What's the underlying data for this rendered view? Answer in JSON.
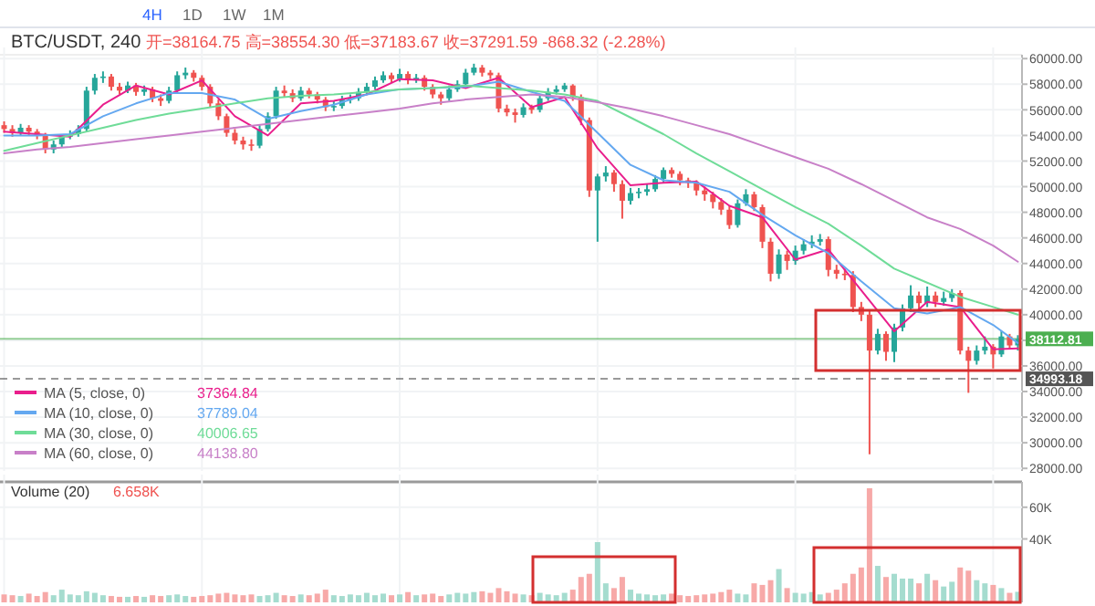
{
  "chart_data": [
    {
      "type": "candlestick",
      "title": "BTC/USDT, 240",
      "subtitle": "开=38164.75 高=38554.30 低=37183.67 收=37291.59 -868.32 (-2.28%)",
      "categories": [
        null,
        null,
        null,
        null,
        null,
        null,
        null,
        null,
        null,
        null,
        null,
        null,
        null,
        null,
        null,
        null,
        null,
        null,
        null,
        null,
        null,
        null,
        null,
        null,
        null,
        null,
        null,
        null,
        null,
        null,
        null,
        null,
        null,
        null,
        null,
        null,
        null,
        null,
        null,
        null,
        null,
        null,
        null,
        null,
        null,
        null,
        null,
        null,
        null,
        null,
        null,
        null,
        null,
        null,
        null,
        null,
        null,
        null,
        null,
        null,
        null,
        null,
        null,
        null,
        null,
        null,
        null,
        null,
        null,
        null,
        null,
        null,
        null,
        null,
        null,
        null,
        null,
        null,
        null,
        null,
        null,
        null,
        null,
        null,
        null,
        null,
        null,
        null,
        null,
        null,
        null,
        null,
        null,
        null,
        null,
        null,
        null,
        null,
        null,
        null,
        null,
        null,
        null,
        null,
        null,
        null,
        null,
        null,
        null,
        null,
        null,
        null,
        null,
        null,
        null,
        null,
        null,
        null,
        null,
        null,
        null,
        null,
        null,
        null
      ],
      "colors": [
        "#ef5350",
        "#ef5350",
        "#26a69a",
        "#ef5350",
        "#ef5350",
        "#ef5350",
        "#26a69a",
        "#26a69a",
        "#26a69a",
        "#26a69a",
        "#26a69a",
        "#26a69a",
        "#26a69a",
        "#ef5350",
        "#ef5350",
        "#26a69a",
        "#ef5350",
        "#26a69a",
        "#ef5350",
        "#ef5350",
        "#26a69a",
        "#26a69a",
        "#26a69a",
        "#ef5350",
        "#ef5350",
        "#ef5350",
        "#ef5350",
        "#ef5350",
        "#ef5350",
        "#ef5350",
        "#ef5350",
        "#26a69a",
        "#26a69a",
        "#26a69a",
        "#ef5350",
        "#ef5350",
        "#26a69a",
        "#ef5350",
        "#ef5350",
        "#ef5350",
        "#26a69a",
        "#26a69a",
        "#26a69a",
        "#26a69a",
        "#26a69a",
        "#26a69a",
        "#26a69a",
        "#ef5350",
        "#26a69a",
        "#ef5350",
        "#26a69a",
        "#ef5350",
        "#ef5350",
        "#ef5350",
        "#26a69a",
        "#26a69a",
        "#26a69a",
        "#26a69a",
        "#ef5350",
        "#ef5350",
        "#ef5350",
        "#ef5350",
        "#ef5350",
        "#26a69a",
        "#ef5350",
        "#26a69a",
        "#26a69a",
        "#26a69a",
        "#26a69a",
        "#ef5350",
        "#ef5350",
        "#ef5350",
        "#26a69a",
        "#26a69a",
        "#ef5350",
        "#ef5350",
        "#26a69a",
        "#26a69a",
        "#26a69a",
        "#26a69a",
        "#26a69a",
        "#ef5350",
        "#ef5350",
        "#ef5350",
        "#ef5350",
        "#ef5350",
        "#ef5350",
        "#ef5350",
        "#ef5350",
        "#26a69a",
        "#26a69a",
        "#ef5350",
        "#ef5350",
        "#ef5350",
        "#26a69a",
        "#ef5350",
        "#26a69a",
        "#26a69a",
        "#26a69a",
        "#26a69a",
        "#ef5350",
        "#ef5350",
        "#ef5350",
        "#ef5350",
        "#ef5350",
        "#ef5350",
        "#26a69a",
        "#ef5350",
        "#26a69a",
        "#26a69a",
        "#26a69a",
        "#ef5350",
        "#26a69a",
        "#ef5350",
        "#26a69a",
        "#26a69a",
        "#ef5350",
        "#ef5350",
        "#26a69a",
        "#26a69a",
        "#ef5350",
        "#26a69a",
        "#ef5350",
        "#26a69a"
      ],
      "ohlc": [
        [
          54800,
          55100,
          54200,
          54500
        ],
        [
          54500,
          54800,
          53900,
          54200
        ],
        [
          54200,
          54900,
          54000,
          54600
        ],
        [
          54600,
          54800,
          54000,
          54300
        ],
        [
          54300,
          54500,
          53700,
          54000
        ],
        [
          54000,
          54200,
          52600,
          52900
        ],
        [
          52900,
          53600,
          52600,
          53300
        ],
        [
          53300,
          54100,
          53100,
          53900
        ],
        [
          53900,
          54400,
          53700,
          54100
        ],
        [
          54100,
          54800,
          53900,
          54500
        ],
        [
          54500,
          57800,
          54300,
          57500
        ],
        [
          57500,
          58800,
          57200,
          58500
        ],
        [
          58500,
          59000,
          58100,
          58600
        ],
        [
          58600,
          58800,
          57500,
          57800
        ],
        [
          57800,
          58100,
          57200,
          57500
        ],
        [
          57500,
          58200,
          57300,
          57900
        ],
        [
          57900,
          58100,
          57100,
          57400
        ],
        [
          57400,
          57900,
          57100,
          57600
        ],
        [
          57600,
          57800,
          56600,
          56900
        ],
        [
          56900,
          57200,
          56300,
          56700
        ],
        [
          56700,
          57800,
          56500,
          57500
        ],
        [
          57500,
          59000,
          57300,
          58700
        ],
        [
          58700,
          59300,
          58400,
          58900
        ],
        [
          58900,
          59100,
          58200,
          58500
        ],
        [
          58500,
          58700,
          57500,
          57800
        ],
        [
          57800,
          58000,
          56200,
          56500
        ],
        [
          56500,
          56800,
          55200,
          55500
        ],
        [
          55500,
          55700,
          53900,
          54200
        ],
        [
          54200,
          54500,
          53300,
          53600
        ],
        [
          53600,
          53900,
          52900,
          53300
        ],
        [
          53300,
          53700,
          52800,
          53200
        ],
        [
          53200,
          54800,
          53000,
          54500
        ],
        [
          54500,
          55800,
          54300,
          55500
        ],
        [
          55500,
          57800,
          55300,
          57500
        ],
        [
          57500,
          57900,
          57000,
          57300
        ],
        [
          57300,
          57600,
          56600,
          56900
        ],
        [
          56900,
          57800,
          56700,
          57500
        ],
        [
          57500,
          57700,
          56900,
          57200
        ],
        [
          57200,
          57400,
          56500,
          56800
        ],
        [
          56800,
          57000,
          55900,
          56200
        ],
        [
          56200,
          56700,
          55900,
          56300
        ],
        [
          56300,
          57100,
          56100,
          56800
        ],
        [
          56800,
          57200,
          56500,
          56900
        ],
        [
          56900,
          57700,
          56700,
          57400
        ],
        [
          57400,
          58100,
          57200,
          57800
        ],
        [
          57800,
          58600,
          57600,
          58300
        ],
        [
          58300,
          59000,
          58100,
          58700
        ],
        [
          58700,
          58900,
          58100,
          58400
        ],
        [
          58400,
          59200,
          58200,
          58800
        ],
        [
          58800,
          59000,
          58000,
          58300
        ],
        [
          58300,
          58800,
          58100,
          58500
        ],
        [
          58500,
          58700,
          57500,
          57800
        ],
        [
          57800,
          58000,
          56900,
          57200
        ],
        [
          57200,
          57400,
          56400,
          56900
        ],
        [
          56900,
          57900,
          56700,
          57600
        ],
        [
          57600,
          58300,
          57400,
          58000
        ],
        [
          58000,
          59200,
          57800,
          58900
        ],
        [
          58900,
          59600,
          58700,
          59300
        ],
        [
          59300,
          59500,
          58600,
          58900
        ],
        [
          58900,
          59100,
          58400,
          58700
        ],
        [
          58700,
          58900,
          55800,
          56100
        ],
        [
          56100,
          56400,
          55500,
          55800
        ],
        [
          55800,
          56100,
          55000,
          55600
        ],
        [
          55600,
          56500,
          55400,
          56200
        ],
        [
          56200,
          56400,
          55700,
          56000
        ],
        [
          56000,
          57200,
          55800,
          56900
        ],
        [
          56900,
          57700,
          56700,
          57400
        ],
        [
          57400,
          57900,
          57200,
          57600
        ],
        [
          57600,
          58100,
          57400,
          57900
        ],
        [
          57900,
          58000,
          56700,
          57000
        ],
        [
          57000,
          57200,
          54800,
          55200
        ],
        [
          55200,
          55400,
          49200,
          49700
        ],
        [
          49700,
          51000,
          45700,
          50800
        ],
        [
          50800,
          51600,
          50400,
          51100
        ],
        [
          51100,
          51300,
          49600,
          50200
        ],
        [
          50200,
          50500,
          47500,
          48900
        ],
        [
          48900,
          49900,
          48600,
          49500
        ],
        [
          49500,
          49900,
          49100,
          49600
        ],
        [
          49600,
          50200,
          49300,
          49800
        ],
        [
          49800,
          50900,
          49600,
          50600
        ],
        [
          50600,
          51500,
          50300,
          51300
        ],
        [
          51300,
          51500,
          50700,
          51000
        ],
        [
          51000,
          51200,
          50100,
          50500
        ],
        [
          50500,
          50700,
          49900,
          50300
        ],
        [
          50300,
          50500,
          49300,
          49700
        ],
        [
          49700,
          50000,
          48900,
          49400
        ],
        [
          49400,
          49600,
          48300,
          48800
        ],
        [
          48800,
          49100,
          47800,
          48200
        ],
        [
          48200,
          48500,
          46700,
          47000
        ],
        [
          47000,
          49000,
          46800,
          48700
        ],
        [
          48700,
          49800,
          48500,
          49400
        ],
        [
          49400,
          49600,
          48100,
          48400
        ],
        [
          48400,
          48600,
          45200,
          45700
        ],
        [
          45700,
          46000,
          42600,
          43200
        ],
        [
          43200,
          45100,
          42800,
          44700
        ],
        [
          44700,
          45000,
          43500,
          44200
        ],
        [
          44200,
          45400,
          43900,
          45000
        ],
        [
          45000,
          45900,
          44700,
          45500
        ],
        [
          45500,
          46200,
          45200,
          45700
        ],
        [
          45700,
          46300,
          45400,
          45900
        ],
        [
          45900,
          46100,
          43000,
          43500
        ],
        [
          43500,
          43900,
          42800,
          43200
        ],
        [
          43200,
          43600,
          42700,
          43100
        ],
        [
          43100,
          43400,
          40200,
          40600
        ],
        [
          40600,
          41000,
          39500,
          40000
        ],
        [
          40000,
          40300,
          29100,
          37200
        ],
        [
          37200,
          38900,
          36900,
          38500
        ],
        [
          38500,
          38700,
          36400,
          37100
        ],
        [
          37100,
          39300,
          36300,
          39000
        ],
        [
          39000,
          40800,
          38700,
          40500
        ],
        [
          40500,
          42300,
          40200,
          41500
        ],
        [
          41500,
          41800,
          40400,
          40900
        ],
        [
          40900,
          42200,
          40600,
          41500
        ],
        [
          41500,
          41800,
          40600,
          41000
        ],
        [
          41000,
          41800,
          40700,
          41300
        ],
        [
          41300,
          42000,
          41000,
          41700
        ],
        [
          41700,
          41900,
          36900,
          37200
        ],
        [
          37200,
          37500,
          33900,
          36400
        ],
        [
          36400,
          37600,
          36100,
          37200
        ],
        [
          37200,
          38300,
          36900,
          37500
        ],
        [
          37500,
          37700,
          35800,
          36900
        ],
        [
          36900,
          38700,
          36700,
          38300
        ],
        [
          38300,
          38500,
          37300,
          37600
        ],
        [
          37600,
          38400,
          37200,
          38100
        ]
      ],
      "series": [
        {
          "type": "line",
          "name": "MA (5, close, 0)",
          "color": "#e91e8c",
          "values": [
            54300,
            null,
            null,
            null,
            54100,
            null,
            null,
            null,
            53900,
            null,
            null,
            null,
            56400,
            null,
            null,
            null,
            57900,
            null,
            null,
            null,
            57200,
            null,
            null,
            null,
            58300,
            null,
            null,
            null,
            55500,
            null,
            null,
            null,
            54000,
            null,
            null,
            null,
            56500,
            null,
            null,
            null,
            56700,
            null,
            null,
            null,
            57200,
            null,
            null,
            null,
            58400,
            null,
            null,
            null,
            58300,
            null,
            null,
            null,
            57700,
            null,
            null,
            null,
            58500,
            null,
            null,
            null,
            56200,
            null,
            null,
            null,
            57000,
            null,
            null,
            null,
            53000,
            null,
            null,
            null,
            50100,
            null,
            null,
            null,
            50300,
            null,
            null,
            null,
            50400,
            null,
            null,
            null,
            48500,
            null,
            null,
            null,
            47600,
            null,
            null,
            null,
            44300,
            null,
            null,
            null,
            45100,
            null,
            null,
            null,
            41900,
            null,
            null,
            null,
            38700,
            null,
            null,
            null,
            41000,
            null,
            null,
            null,
            40600,
            null,
            null,
            null,
            37300,
            null,
            null,
            37360
          ]
        },
        {
          "type": "line",
          "name": "MA (10, close, 0)",
          "color": "#64a8f0",
          "values": [
            54000,
            null,
            null,
            null,
            54000,
            null,
            null,
            null,
            54100,
            null,
            null,
            null,
            55500,
            null,
            null,
            null,
            56500,
            null,
            null,
            null,
            57300,
            null,
            null,
            null,
            57300,
            null,
            null,
            null,
            56800,
            null,
            null,
            null,
            55300,
            null,
            null,
            null,
            55900,
            null,
            null,
            null,
            56400,
            null,
            null,
            null,
            57200,
            null,
            null,
            null,
            57600,
            null,
            null,
            null,
            57700,
            null,
            null,
            null,
            57800,
            null,
            null,
            null,
            58200,
            null,
            null,
            null,
            57400,
            null,
            null,
            null,
            56700,
            null,
            null,
            null,
            54200,
            null,
            null,
            null,
            51700,
            null,
            null,
            null,
            50500,
            null,
            null,
            null,
            50300,
            null,
            null,
            null,
            49600,
            null,
            null,
            null,
            47800,
            null,
            null,
            null,
            46200,
            null,
            null,
            null,
            44800,
            null,
            null,
            null,
            42600,
            null,
            null,
            null,
            40500,
            null,
            null,
            null,
            40100,
            null,
            null,
            null,
            40600,
            null,
            null,
            null,
            39200,
            null,
            null,
            37790
          ]
        },
        {
          "type": "line",
          "name": "MA (30, close, 0)",
          "color": "#6fdc98",
          "values": [
            52800,
            null,
            null,
            null,
            53400,
            null,
            null,
            null,
            54000,
            null,
            null,
            null,
            54600,
            null,
            null,
            null,
            55200,
            null,
            null,
            null,
            55700,
            null,
            null,
            null,
            56100,
            null,
            null,
            null,
            56500,
            null,
            null,
            null,
            56900,
            null,
            null,
            null,
            57100,
            null,
            null,
            null,
            57200,
            null,
            null,
            null,
            57400,
            null,
            null,
            null,
            57600,
            null,
            null,
            null,
            57700,
            null,
            null,
            null,
            57900,
            null,
            null,
            null,
            57700,
            null,
            null,
            null,
            57500,
            null,
            null,
            null,
            57200,
            null,
            null,
            null,
            56700,
            null,
            null,
            null,
            55400,
            null,
            null,
            null,
            54100,
            null,
            null,
            null,
            52600,
            null,
            null,
            null,
            51200,
            null,
            null,
            null,
            49800,
            null,
            null,
            null,
            48400,
            null,
            null,
            null,
            47100,
            null,
            null,
            null,
            45400,
            null,
            null,
            null,
            43600,
            null,
            null,
            null,
            42500,
            null,
            null,
            null,
            41400,
            null,
            null,
            null,
            40600,
            null,
            null,
            40010
          ]
        },
        {
          "type": "line",
          "name": "MA (60, close, 0)",
          "color": "#c880c8",
          "values": [
            52600,
            null,
            null,
            null,
            52900,
            null,
            null,
            null,
            53100,
            null,
            null,
            null,
            53400,
            null,
            null,
            null,
            53700,
            null,
            null,
            null,
            54000,
            null,
            null,
            null,
            54300,
            null,
            null,
            null,
            54600,
            null,
            null,
            null,
            54900,
            null,
            null,
            null,
            55200,
            null,
            null,
            null,
            55500,
            null,
            null,
            null,
            55800,
            null,
            null,
            null,
            56100,
            null,
            null,
            null,
            56500,
            null,
            null,
            null,
            56800,
            null,
            null,
            null,
            57000,
            null,
            null,
            null,
            57200,
            null,
            null,
            null,
            57000,
            null,
            null,
            null,
            56600,
            null,
            null,
            null,
            56100,
            null,
            null,
            null,
            55500,
            null,
            null,
            null,
            54800,
            null,
            null,
            null,
            54100,
            null,
            null,
            null,
            53200,
            null,
            null,
            null,
            52300,
            null,
            null,
            null,
            51400,
            null,
            null,
            null,
            50200,
            null,
            null,
            null,
            48900,
            null,
            null,
            null,
            47600,
            null,
            null,
            null,
            46700,
            null,
            null,
            null,
            45400,
            null,
            null,
            44140
          ]
        }
      ],
      "ylim": [
        27800,
        60300
      ],
      "yticks": [
        {
          "value": 28000,
          "label": "28000.00"
        },
        {
          "value": 30000,
          "label": "30000.00"
        },
        {
          "value": 32000,
          "label": "32000.00"
        },
        {
          "value": 34000,
          "label": "34000.00"
        },
        {
          "value": 36000,
          "label": "36000.00"
        },
        {
          "value": 38000,
          "label": null
        },
        {
          "value": 40000,
          "label": "40000.00"
        },
        {
          "value": 42000,
          "label": "42000.00"
        },
        {
          "value": 44000,
          "label": "44000.00"
        },
        {
          "value": 46000,
          "label": "46000.00"
        },
        {
          "value": 48000,
          "label": "48000.00"
        },
        {
          "value": 50000,
          "label": "50000.00"
        },
        {
          "value": 52000,
          "label": "52000.00"
        },
        {
          "value": 54000,
          "label": "54000.00"
        },
        {
          "value": 56000,
          "label": "56000.00"
        },
        {
          "value": 58000,
          "label": "58000.00"
        },
        {
          "value": 60000,
          "label": "60000.00"
        }
      ],
      "ref_lines": [
        {
          "axis": "y",
          "value": 38112.81,
          "label": "38112.81",
          "color": "#4caf50",
          "line_style": "solid"
        },
        {
          "axis": "y",
          "value": 34993.18,
          "label": "34993.18",
          "color": "#555555",
          "line_style": "dashed"
        }
      ],
      "annotations": [
        "4H",
        "1D",
        "1W",
        "1M",
        "37364.84",
        "37789.04",
        "40006.65",
        "44138.80"
      ],
      "grid": true,
      "legend": "bottom left",
      "tick_labels": "y"
    },
    {
      "type": "bar",
      "title": "Volume (20)",
      "annotations": [
        "6.658K"
      ],
      "categories": [
        null,
        null,
        null,
        null,
        null,
        null,
        null,
        null,
        null,
        null,
        null,
        null,
        null,
        null,
        null,
        null,
        null,
        null,
        null,
        null,
        null,
        null,
        null,
        null,
        null,
        null,
        null,
        null,
        null,
        null,
        null,
        null,
        null,
        null,
        null,
        null,
        null,
        null,
        null,
        null,
        null,
        null,
        null,
        null,
        null,
        null,
        null,
        null,
        null,
        null,
        null,
        null,
        null,
        null,
        null,
        null,
        null,
        null,
        null,
        null,
        null,
        null,
        null,
        null,
        null,
        null,
        null,
        null,
        null,
        null,
        null,
        null,
        null,
        null,
        null,
        null,
        null,
        null,
        null,
        null,
        null,
        null,
        null,
        null,
        null,
        null,
        null,
        null,
        null,
        null,
        null,
        null,
        null,
        null,
        null,
        null,
        null,
        null,
        null,
        null,
        null,
        null,
        null,
        null,
        null,
        null,
        null,
        null,
        null,
        null,
        null,
        null,
        null,
        null,
        null,
        null,
        null,
        null,
        null,
        null,
        null,
        null,
        null,
        null
      ],
      "values": [
        5000,
        4500,
        4000,
        5500,
        4000,
        6500,
        4500,
        8000,
        5000,
        4500,
        7000,
        6000,
        4500,
        4000,
        3500,
        3500,
        4000,
        3500,
        4500,
        4000,
        4500,
        5000,
        4000,
        3500,
        4000,
        4500,
        5500,
        6000,
        5000,
        4500,
        5000,
        4000,
        4500,
        6000,
        4500,
        4000,
        5000,
        4500,
        5500,
        8000,
        4500,
        4000,
        5000,
        4500,
        6000,
        4500,
        5500,
        4500,
        5000,
        6500,
        4500,
        5000,
        5500,
        4000,
        5000,
        6000,
        5500,
        6500,
        7000,
        6000,
        9000,
        7000,
        5500,
        5000,
        4500,
        6000,
        5000,
        4500,
        6000,
        8000,
        16000,
        18000,
        38000,
        12000,
        9000,
        16000,
        8000,
        5500,
        5000,
        4500,
        5000,
        5500,
        4500,
        4000,
        4500,
        5000,
        5500,
        6500,
        8000,
        5500,
        5000,
        12000,
        11000,
        14000,
        21000,
        9000,
        6000,
        5500,
        6500,
        5000,
        6000,
        8000,
        12000,
        18000,
        22000,
        72000,
        23000,
        16000,
        18000,
        15000,
        15000,
        12000,
        18000,
        14000,
        10000,
        13000,
        22000,
        20000,
        14000,
        12000,
        11000,
        9000,
        6000,
        6658
      ],
      "colors": [
        "#f7a9a8",
        "#f7a9a8",
        "#a5dccf",
        "#f7a9a8",
        "#f7a9a8",
        "#f7a9a8",
        "#a5dccf",
        "#a5dccf",
        "#a5dccf",
        "#a5dccf",
        "#a5dccf",
        "#a5dccf",
        "#a5dccf",
        "#f7a9a8",
        "#f7a9a8",
        "#a5dccf",
        "#f7a9a8",
        "#a5dccf",
        "#f7a9a8",
        "#f7a9a8",
        "#a5dccf",
        "#a5dccf",
        "#a5dccf",
        "#f7a9a8",
        "#f7a9a8",
        "#f7a9a8",
        "#f7a9a8",
        "#f7a9a8",
        "#f7a9a8",
        "#f7a9a8",
        "#f7a9a8",
        "#a5dccf",
        "#a5dccf",
        "#a5dccf",
        "#f7a9a8",
        "#f7a9a8",
        "#a5dccf",
        "#f7a9a8",
        "#f7a9a8",
        "#f7a9a8",
        "#a5dccf",
        "#a5dccf",
        "#a5dccf",
        "#a5dccf",
        "#a5dccf",
        "#a5dccf",
        "#a5dccf",
        "#f7a9a8",
        "#a5dccf",
        "#f7a9a8",
        "#a5dccf",
        "#f7a9a8",
        "#f7a9a8",
        "#f7a9a8",
        "#a5dccf",
        "#a5dccf",
        "#a5dccf",
        "#a5dccf",
        "#f7a9a8",
        "#f7a9a8",
        "#f7a9a8",
        "#f7a9a8",
        "#f7a9a8",
        "#a5dccf",
        "#f7a9a8",
        "#a5dccf",
        "#a5dccf",
        "#a5dccf",
        "#a5dccf",
        "#f7a9a8",
        "#f7a9a8",
        "#f7a9a8",
        "#a5dccf",
        "#a5dccf",
        "#f7a9a8",
        "#f7a9a8",
        "#a5dccf",
        "#a5dccf",
        "#a5dccf",
        "#a5dccf",
        "#a5dccf",
        "#f7a9a8",
        "#f7a9a8",
        "#f7a9a8",
        "#f7a9a8",
        "#f7a9a8",
        "#f7a9a8",
        "#f7a9a8",
        "#f7a9a8",
        "#a5dccf",
        "#a5dccf",
        "#f7a9a8",
        "#f7a9a8",
        "#f7a9a8",
        "#a5dccf",
        "#f7a9a8",
        "#a5dccf",
        "#a5dccf",
        "#a5dccf",
        "#a5dccf",
        "#f7a9a8",
        "#f7a9a8",
        "#f7a9a8",
        "#f7a9a8",
        "#f7a9a8",
        "#f7a9a8",
        "#a5dccf",
        "#f7a9a8",
        "#a5dccf",
        "#a5dccf",
        "#a5dccf",
        "#f7a9a8",
        "#a5dccf",
        "#f7a9a8",
        "#a5dccf",
        "#a5dccf",
        "#f7a9a8",
        "#f7a9a8",
        "#a5dccf",
        "#a5dccf",
        "#f7a9a8",
        "#a5dccf",
        "#f7a9a8",
        "#a5dccf"
      ],
      "ylim": [
        0,
        76000
      ],
      "yticks": [
        {
          "value": 40000,
          "label": "40K"
        },
        {
          "value": 60000,
          "label": "60K"
        }
      ],
      "grid": true,
      "tick_labels": "y"
    }
  ]
}
